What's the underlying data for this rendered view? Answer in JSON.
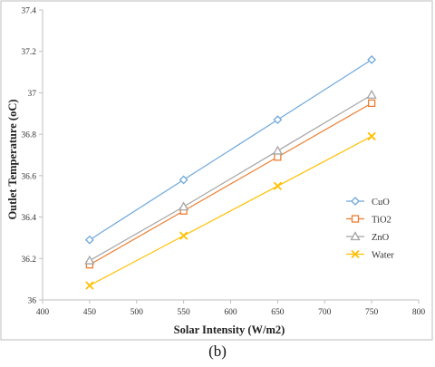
{
  "chart_data": {
    "type": "line",
    "xlabel": "Solar Intensity (W/m2)",
    "ylabel": "Outlet Temperature (oC)",
    "xlim": [
      400,
      800
    ],
    "ylim": [
      36,
      37.4
    ],
    "x_ticks": [
      400,
      450,
      500,
      550,
      600,
      650,
      700,
      750,
      800
    ],
    "y_ticks": [
      36,
      36.2,
      36.4,
      36.6,
      36.8,
      37,
      37.2,
      37.4
    ],
    "x_tick_labels": [
      "400",
      "450",
      "500",
      "550",
      "600",
      "650",
      "700",
      "750",
      "800"
    ],
    "y_tick_labels": [
      "36",
      "36.2",
      "36.4",
      "36.6",
      "36.8",
      "37",
      "37.2",
      "37.4"
    ],
    "grid": false,
    "legend_position": "right",
    "x": [
      450,
      550,
      650,
      750
    ],
    "series": [
      {
        "name": "CuO",
        "values": [
          36.29,
          36.58,
          36.87,
          37.16
        ],
        "color": "#6fa8dc",
        "marker": "diamond"
      },
      {
        "name": "TiO2",
        "values": [
          36.17,
          36.43,
          36.69,
          36.95
        ],
        "color": "#ed7d31",
        "marker": "square"
      },
      {
        "name": "ZnO",
        "values": [
          36.19,
          36.45,
          36.72,
          36.99
        ],
        "color": "#a5a5a5",
        "marker": "triangle"
      },
      {
        "name": "Water",
        "values": [
          36.07,
          36.31,
          36.55,
          36.79
        ],
        "color": "#ffc000",
        "marker": "x"
      }
    ]
  },
  "caption": "(b)"
}
